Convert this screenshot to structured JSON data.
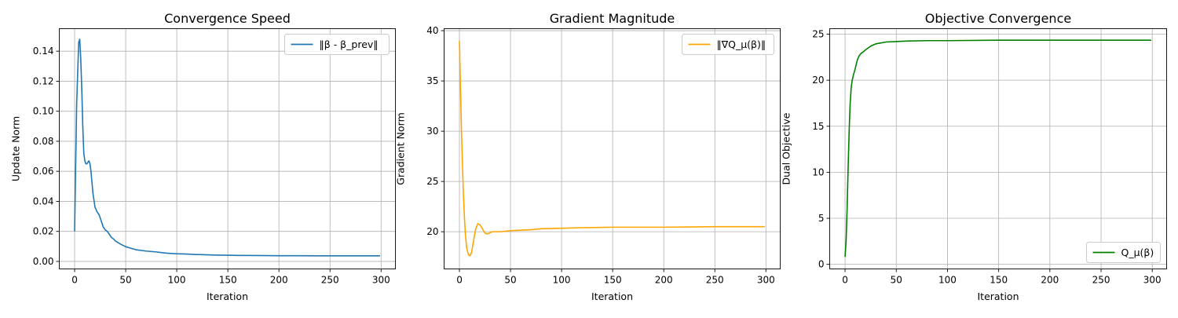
{
  "chart_data": [
    {
      "type": "line",
      "title": "Convergence Speed",
      "xlabel": "Iteration",
      "ylabel": "Update Norm",
      "xlim": [
        -15,
        314
      ],
      "ylim": [
        -0.005,
        0.155
      ],
      "xticks": [
        0,
        50,
        100,
        150,
        200,
        250,
        300
      ],
      "yticks": [
        0.0,
        0.02,
        0.04,
        0.06,
        0.08,
        0.1,
        0.12,
        0.14
      ],
      "ytick_labels": [
        "0.00",
        "0.02",
        "0.04",
        "0.06",
        "0.08",
        "0.10",
        "0.12",
        "0.14"
      ],
      "grid": true,
      "legend_position": "top-right",
      "series": [
        {
          "name": "‖β - β_prev‖",
          "color": "#1f77b4",
          "x": [
            0,
            2,
            4,
            5,
            6,
            7,
            8,
            9,
            10,
            11,
            12,
            13,
            14,
            15,
            16,
            18,
            20,
            22,
            24,
            26,
            28,
            30,
            32,
            34,
            36,
            38,
            40,
            45,
            50,
            55,
            60,
            70,
            80,
            90,
            100,
            110,
            120,
            130,
            140,
            150,
            160,
            180,
            200,
            220,
            240,
            260,
            280,
            299
          ],
          "y": [
            0.02,
            0.105,
            0.146,
            0.148,
            0.135,
            0.115,
            0.09,
            0.072,
            0.067,
            0.065,
            0.065,
            0.066,
            0.067,
            0.065,
            0.06,
            0.045,
            0.036,
            0.033,
            0.031,
            0.027,
            0.023,
            0.021,
            0.02,
            0.018,
            0.016,
            0.015,
            0.0135,
            0.0115,
            0.0098,
            0.0088,
            0.0078,
            0.0069,
            0.0063,
            0.0055,
            0.0051,
            0.0049,
            0.0046,
            0.0044,
            0.0042,
            0.0041,
            0.004,
            0.0039,
            0.0038,
            0.0038,
            0.0037,
            0.0037,
            0.0037,
            0.0037
          ]
        }
      ]
    },
    {
      "type": "line",
      "title": "Gradient Magnitude",
      "xlabel": "Iteration",
      "ylabel": "Gradient Norm",
      "xlim": [
        -15,
        314
      ],
      "ylim": [
        16.3,
        40.2
      ],
      "xticks": [
        0,
        50,
        100,
        150,
        200,
        250,
        300
      ],
      "yticks": [
        20,
        25,
        30,
        35,
        40
      ],
      "ytick_labels": [
        "20",
        "25",
        "30",
        "35",
        "40"
      ],
      "grid": true,
      "legend_position": "top-right",
      "series": [
        {
          "name": "‖∇Q_μ(β)‖",
          "color": "#ffa500",
          "x": [
            0,
            1,
            2,
            3,
            4,
            5,
            6,
            7,
            8,
            9,
            10,
            11,
            12,
            13,
            14,
            15,
            16,
            18,
            20,
            22,
            24,
            26,
            28,
            30,
            32,
            34,
            36,
            40,
            45,
            50,
            60,
            70,
            80,
            100,
            120,
            150,
            200,
            250,
            299
          ],
          "y": [
            39.0,
            34.5,
            30.0,
            26.5,
            23.5,
            21.2,
            19.5,
            18.5,
            18.0,
            17.7,
            17.6,
            17.7,
            18.0,
            18.6,
            19.2,
            19.8,
            20.3,
            20.8,
            20.7,
            20.4,
            20.0,
            19.8,
            19.8,
            19.9,
            20.0,
            20.0,
            20.0,
            20.0,
            20.05,
            20.1,
            20.15,
            20.2,
            20.3,
            20.35,
            20.4,
            20.45,
            20.45,
            20.5,
            20.5
          ]
        }
      ]
    },
    {
      "type": "line",
      "title": "Objective Convergence",
      "xlabel": "Iteration",
      "ylabel": "Dual Objective",
      "xlim": [
        -15,
        314
      ],
      "ylim": [
        -0.5,
        25.6
      ],
      "xticks": [
        0,
        50,
        100,
        150,
        200,
        250,
        300
      ],
      "yticks": [
        0,
        5,
        10,
        15,
        20,
        25
      ],
      "ytick_labels": [
        "0",
        "5",
        "10",
        "15",
        "20",
        "25"
      ],
      "grid": true,
      "legend_position": "bottom-right",
      "series": [
        {
          "name": "Q_μ(β)",
          "color": "#008000",
          "x": [
            0,
            1,
            2,
            3,
            4,
            5,
            6,
            7,
            8,
            10,
            12,
            14,
            16,
            18,
            20,
            25,
            30,
            35,
            40,
            50,
            60,
            80,
            100,
            150,
            200,
            250,
            299
          ],
          "y": [
            0.8,
            2.5,
            6.0,
            10.5,
            14.5,
            17.5,
            19.2,
            20.0,
            20.5,
            21.3,
            22.2,
            22.7,
            22.95,
            23.1,
            23.3,
            23.7,
            23.95,
            24.05,
            24.15,
            24.2,
            24.25,
            24.3,
            24.3,
            24.35,
            24.35,
            24.35,
            24.35
          ]
        }
      ]
    }
  ]
}
